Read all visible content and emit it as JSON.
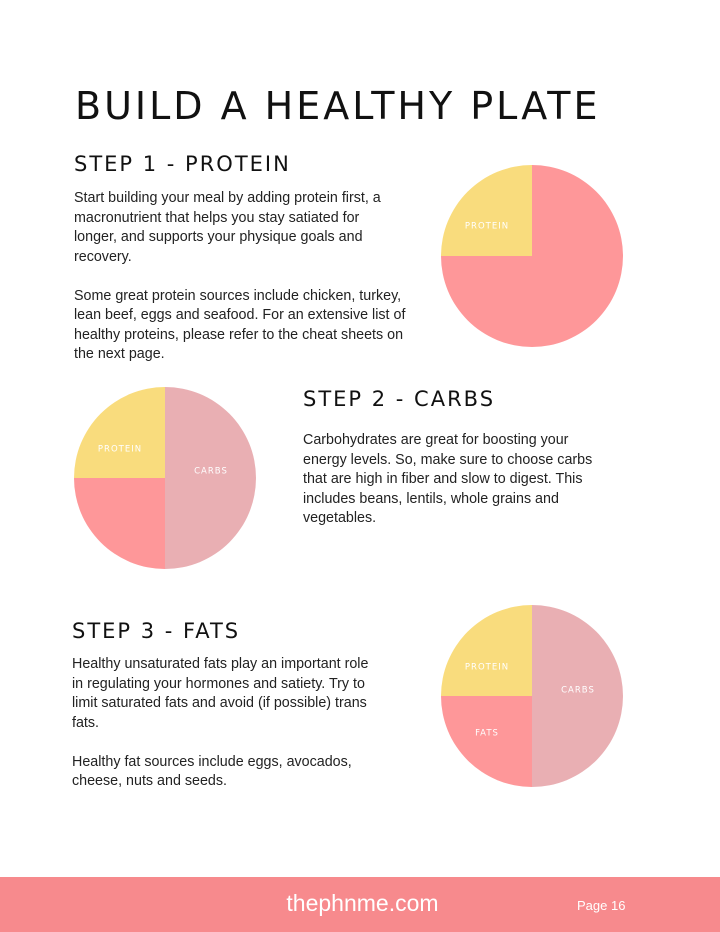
{
  "header": {
    "title": "BUILD A HEALTHY PLATE"
  },
  "steps": [
    {
      "heading": "STEP 1 - PROTEIN",
      "paragraphs": [
        [
          "Start building your meal by adding protein first, a",
          "macronutrient that helps you stay satiated for",
          "longer, and supports your physique goals and",
          "recovery."
        ],
        [
          "Some great protein sources include chicken, turkey,",
          "lean beef, eggs and seafood. For an extensive list of",
          "healthy proteins, please refer to the cheat sheets on",
          "the next page."
        ]
      ],
      "plate_labels": [
        "PROTEIN"
      ]
    },
    {
      "heading": "STEP 2 - CARBS",
      "paragraphs": [
        [
          "Carbohydrates are great for boosting your",
          "energy levels. So, make sure to choose carbs",
          "that are high in fiber and slow to digest. This",
          "includes beans, lentils, whole grains and",
          "vegetables."
        ]
      ],
      "plate_labels": [
        "PROTEIN",
        "CARBS"
      ]
    },
    {
      "heading": "STEP 3 - FATS",
      "paragraphs": [
        [
          "Healthy unsaturated fats play an important role",
          "in regulating your hormones and satiety. Try to",
          "limit saturated fats and avoid (if possible) trans",
          "fats."
        ],
        [
          "Healthy fat sources include eggs, avocados,",
          "cheese, nuts and seeds."
        ]
      ],
      "plate_labels": [
        "PROTEIN",
        "CARBS",
        "FATS"
      ]
    }
  ],
  "footer": {
    "site": "thephnme.com",
    "page": "Page 16"
  }
}
